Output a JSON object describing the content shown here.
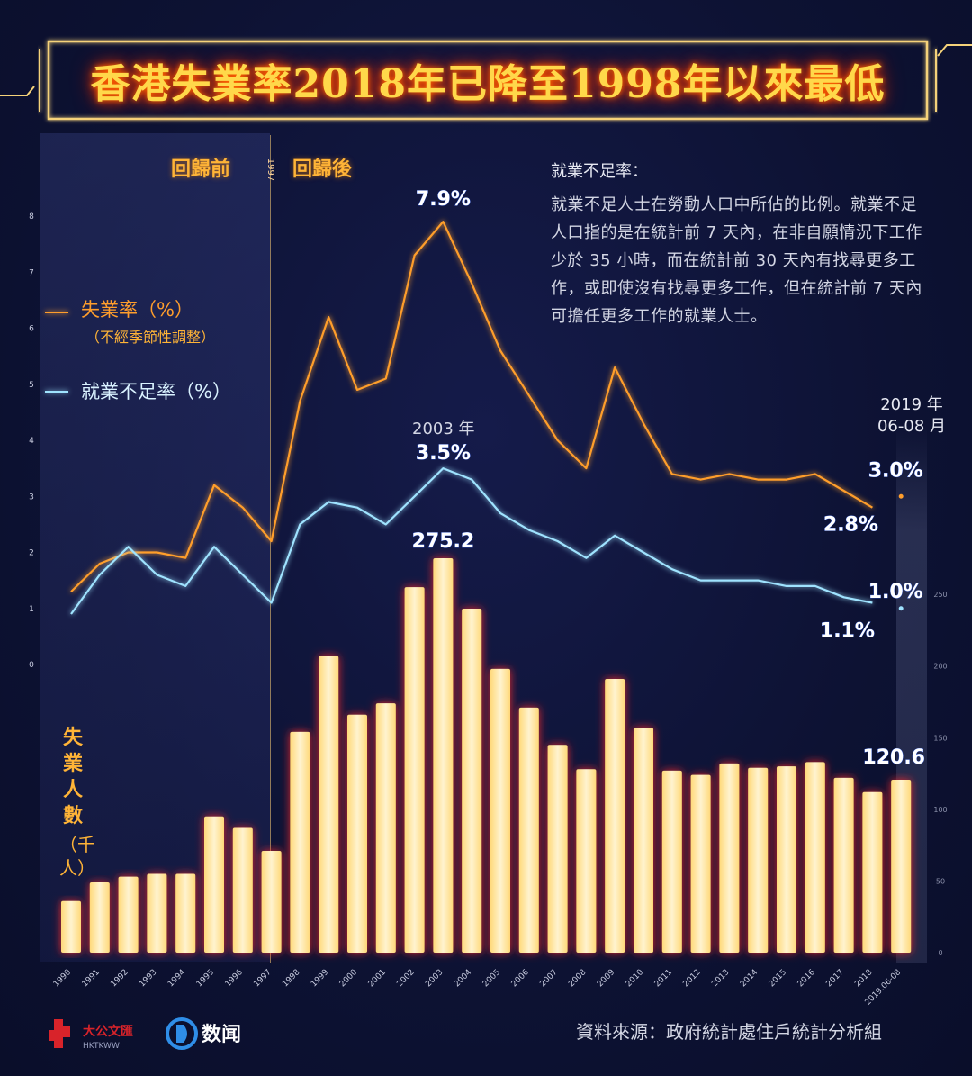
{
  "title": "香港失業率2018年已降至1998年以來最低",
  "eras": {
    "before": "回歸前",
    "after": "回歸後",
    "handover_year": "1997"
  },
  "legend": {
    "unemployment": "失業率（%）",
    "unemployment_note": "（不經季節性調整）",
    "underemployment": "就業不足率（%）"
  },
  "note": {
    "title": "就業不足率：",
    "body": "就業不足人士在勞動人口中所佔的比例。就業不足人口指的是在統計前 7 天內，在非自願情況下工作少於 35 小時，而在統計前 30 天內有找尋更多工作，或即使沒有找尋更多工作，但在統計前 7 天內可擔任更多工作的就業人士。"
  },
  "bar_unit": {
    "label": "失業人數",
    "unit": "（千人）"
  },
  "latest_caption": {
    "line1": "2019 年",
    "line2": "06-08 月"
  },
  "peak_caption": "2003 年",
  "source": "資料來源：政府統計處住戶統計分析組",
  "logos": {
    "left": "大公文匯",
    "left_sub": "HKTKWW",
    "right": "数闻"
  },
  "colors": {
    "unemployment": "#ff9e2c",
    "underemployment": "#9fe3ff",
    "bars": "#ffe8a8",
    "bar_glow": "#ff2a2a",
    "title": "#ffd84a"
  },
  "chart_data": {
    "type": "bar+line",
    "categories": [
      "1990",
      "1991",
      "1992",
      "1993",
      "1994",
      "1995",
      "1996",
      "1997",
      "1998",
      "1999",
      "2000",
      "2001",
      "2002",
      "2003",
      "2004",
      "2005",
      "2006",
      "2007",
      "2008",
      "2009",
      "2010",
      "2011",
      "2012",
      "2013",
      "2014",
      "2015",
      "2016",
      "2017",
      "2018",
      "2019.06-08"
    ],
    "bars": {
      "name": "失業人數",
      "values": [
        36,
        49,
        53,
        55,
        55,
        95,
        87,
        71,
        154,
        207,
        166,
        174,
        255,
        275.2,
        240,
        198,
        171,
        145,
        128,
        191,
        157,
        127,
        124,
        132,
        129,
        130,
        133,
        122,
        112,
        120.6
      ],
      "range": [
        0,
        280
      ],
      "ticks": [
        0,
        50,
        100,
        150,
        200,
        250
      ],
      "labels": {
        "2003": "275.2",
        "2019.06-08": "120.6"
      }
    },
    "lines": {
      "range": [
        0,
        8
      ],
      "ticks": [
        0,
        1,
        2,
        3,
        4,
        5,
        6,
        7,
        8
      ],
      "series": [
        {
          "name": "失業率（%）",
          "values": [
            1.3,
            1.8,
            2.0,
            2.0,
            1.9,
            3.2,
            2.8,
            2.2,
            4.7,
            6.2,
            4.9,
            5.1,
            7.3,
            7.9,
            6.8,
            5.6,
            4.8,
            4.0,
            3.5,
            5.3,
            4.3,
            3.4,
            3.3,
            3.4,
            3.3,
            3.3,
            3.4,
            3.1,
            2.8,
            3.0
          ],
          "labels": {
            "2003": "7.9%",
            "2018": "2.8%",
            "2019.06-08": "3.0%"
          }
        },
        {
          "name": "就業不足率（%）",
          "values": [
            0.9,
            1.6,
            2.1,
            1.6,
            1.4,
            2.1,
            1.6,
            1.1,
            2.5,
            2.9,
            2.8,
            2.5,
            3.0,
            3.5,
            3.3,
            2.7,
            2.4,
            2.2,
            1.9,
            2.3,
            2.0,
            1.7,
            1.5,
            1.5,
            1.5,
            1.4,
            1.4,
            1.2,
            1.1,
            1.0
          ],
          "labels": {
            "2003": "3.5%",
            "2018": "1.1%",
            "2019.06-08": "1.0%"
          }
        }
      ]
    }
  }
}
